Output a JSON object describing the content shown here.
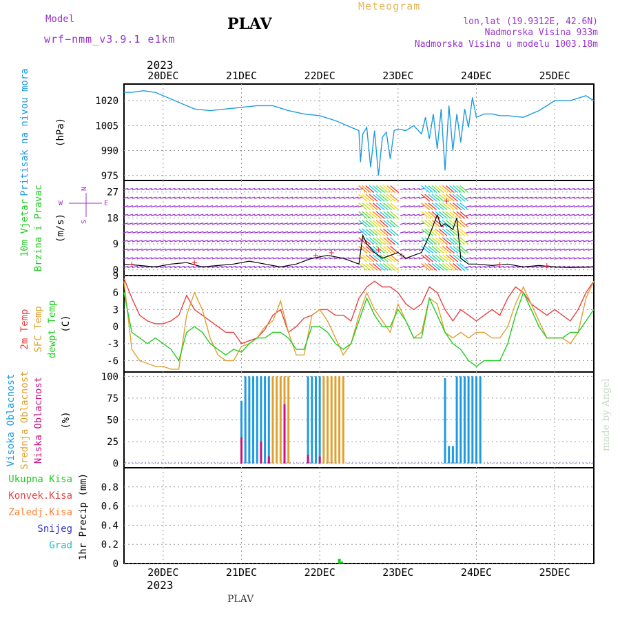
{
  "header": {
    "model_label": "Model",
    "model_name": "wrf−nmm_v3.9.1  e1km",
    "station": "PLAV",
    "product": "Meteogram",
    "lonlat": "lon,lat (19.9312E, 42.6N)",
    "elevation": "Nadmorska Visina 933m",
    "model_elevation": "Nadmorska Visina u modelu 1003.18m",
    "year_top": "2023",
    "year_bottom": "2023",
    "footer_station": "PLAV",
    "credit": "made by Angel"
  },
  "colors": {
    "pressure": "#1e9be0",
    "temp2m": "#e84040",
    "sfc": "#e0a030",
    "dewpt": "#20cc20",
    "high": "#1e9be0",
    "mid": "#e0a030",
    "low": "#cc1080",
    "purple": "#9933cc",
    "gold": "#e6b85c"
  },
  "chart_data": [
    {
      "type": "line",
      "panel": "pressure",
      "title_lines": [
        "Pritisak na nivou mora"
      ],
      "unit": "(hPa)",
      "x_ticks": [
        "20DEC",
        "21DEC",
        "22DEC",
        "23DEC",
        "24DEC",
        "25DEC"
      ],
      "ylim": [
        972,
        1030
      ],
      "yticks": [
        975,
        990,
        1005,
        1020
      ],
      "series": [
        {
          "x": [
            19.5,
            19.6,
            19.75,
            19.9,
            20.0,
            20.2,
            20.4,
            20.6,
            20.8,
            21.0,
            21.2,
            21.4,
            21.6,
            21.8,
            22.0,
            22.2,
            22.4,
            22.45,
            22.5,
            22.52,
            22.55,
            22.6,
            22.65,
            22.7,
            22.75,
            22.8,
            22.85,
            22.9,
            22.95,
            23.0,
            23.1,
            23.2,
            23.3,
            23.35,
            23.4,
            23.45,
            23.5,
            23.55,
            23.6,
            23.65,
            23.7,
            23.75,
            23.8,
            23.85,
            23.9,
            23.95,
            24.0,
            24.1,
            24.2,
            24.3,
            24.4,
            24.6,
            24.8,
            25.0,
            25.2,
            25.4,
            25.5
          ],
          "y": [
            1025,
            1025,
            1026,
            1025,
            1023,
            1019,
            1015,
            1014,
            1015,
            1016,
            1017,
            1017,
            1014,
            1012,
            1011,
            1008,
            1004,
            1003,
            1002,
            983,
            1000,
            1004,
            980,
            1002,
            975,
            998,
            1001,
            985,
            1002,
            1003,
            1002,
            1005,
            1000,
            1010,
            997,
            1012,
            991,
            1015,
            978,
            1017,
            990,
            1012,
            995,
            1015,
            1004,
            1022,
            1010,
            1012,
            1012,
            1011,
            1011,
            1010,
            1014,
            1020,
            1020,
            1023,
            1020
          ]
        }
      ]
    },
    {
      "type": "line",
      "panel": "wind",
      "title_lines": [
        "10m Vjetar",
        "Brzina i Pravac"
      ],
      "unit": "(m/s)",
      "compass": [
        "N",
        "W",
        "E",
        "S"
      ],
      "ylim": [
        -2,
        31
      ],
      "yticks": [
        0,
        9,
        18,
        27
      ],
      "series": [
        {
          "name": "speed",
          "x": [
            19.5,
            19.7,
            19.9,
            20.1,
            20.3,
            20.5,
            20.7,
            20.9,
            21.1,
            21.3,
            21.5,
            21.7,
            21.9,
            22.1,
            22.3,
            22.5,
            22.55,
            22.6,
            22.7,
            22.8,
            22.9,
            23.0,
            23.1,
            23.2,
            23.3,
            23.4,
            23.5,
            23.55,
            23.6,
            23.7,
            23.75,
            23.8,
            23.9,
            24.0,
            24.2,
            24.4,
            24.6,
            24.8,
            25.0,
            25.2,
            25.5
          ],
          "y": [
            2,
            1.5,
            1,
            2,
            2.5,
            1,
            1.5,
            2,
            3,
            2,
            1,
            2,
            4,
            5,
            4,
            2,
            12,
            9,
            6,
            4,
            5,
            6,
            4,
            5,
            6,
            12,
            19,
            15,
            16,
            14,
            18,
            4,
            2,
            2,
            1.5,
            2,
            1,
            1.5,
            1,
            0.8,
            1
          ]
        }
      ],
      "gust_symbol": "+"
    },
    {
      "type": "line",
      "panel": "temperature",
      "title_lines": [
        "2m Temp",
        "SFC Temp",
        "dewpt Temp"
      ],
      "unit": "(C)",
      "ylim": [
        -8,
        9
      ],
      "yticks": [
        -6,
        -3,
        0,
        3,
        6,
        9
      ],
      "x": [
        19.5,
        19.6,
        19.7,
        19.8,
        19.9,
        20.0,
        20.1,
        20.2,
        20.3,
        20.4,
        20.5,
        20.6,
        20.7,
        20.8,
        20.9,
        21.0,
        21.1,
        21.2,
        21.3,
        21.4,
        21.5,
        21.6,
        21.7,
        21.8,
        21.9,
        22.0,
        22.1,
        22.2,
        22.3,
        22.4,
        22.5,
        22.6,
        22.7,
        22.8,
        22.9,
        23.0,
        23.1,
        23.2,
        23.3,
        23.4,
        23.5,
        23.6,
        23.7,
        23.8,
        23.9,
        24.0,
        24.1,
        24.2,
        24.3,
        24.4,
        24.5,
        24.6,
        24.7,
        24.8,
        24.9,
        25.0,
        25.1,
        25.2,
        25.3,
        25.4,
        25.5
      ],
      "series": [
        {
          "name": "2m Temp",
          "color_key": "temp2m",
          "y": [
            8.5,
            5,
            2,
            1,
            0.5,
            0.5,
            1,
            2,
            5.5,
            3,
            2,
            1,
            0,
            -1,
            -1,
            -3,
            -2.5,
            -2,
            -0.5,
            2,
            3,
            -1,
            0,
            1.5,
            2,
            3,
            3,
            2,
            2,
            1,
            5,
            7,
            8,
            7,
            7,
            6,
            4,
            3,
            4,
            7,
            6,
            3,
            1,
            3,
            2,
            1,
            2,
            3,
            2,
            5,
            7,
            6,
            4,
            3,
            2,
            3,
            2,
            1,
            3,
            6,
            8
          ]
        },
        {
          "name": "SFC Temp",
          "color_key": "sfc",
          "y": [
            8,
            -4,
            -6,
            -6.5,
            -7,
            -7,
            -7.5,
            -7.5,
            2,
            6,
            3,
            -2,
            -5,
            -6,
            -6,
            -3.5,
            -3,
            -2,
            0,
            1,
            4.5,
            -1,
            -5,
            -5,
            2,
            3,
            1,
            -2,
            -5,
            -3,
            2,
            6,
            3,
            1,
            -1,
            4,
            1,
            -2,
            -1,
            5,
            4,
            -1,
            -2,
            -1,
            -2,
            -1,
            -1,
            -2,
            -2,
            0,
            4,
            7,
            4,
            1,
            -2,
            -2,
            -2,
            -3,
            -1,
            5,
            8
          ]
        },
        {
          "name": "dewpt Temp",
          "color_key": "dewpt",
          "y": [
            6,
            -1,
            -2,
            -3,
            -2,
            -3,
            -4,
            -6,
            -1,
            0,
            -1,
            -3,
            -4,
            -5,
            -4,
            -4.5,
            -3,
            -2,
            -2,
            -1,
            -1,
            -2,
            -4,
            -4,
            0,
            0,
            -1,
            -3,
            -4,
            -3,
            1,
            5,
            2,
            0,
            0,
            3,
            1,
            -2,
            -2,
            5,
            2,
            -1,
            -3,
            -4,
            -6,
            -7,
            -6,
            -6,
            -6,
            -3,
            2,
            6,
            3,
            0,
            -2,
            -2,
            -2,
            -1,
            -1,
            1,
            3
          ]
        }
      ]
    },
    {
      "type": "bar",
      "panel": "clouds",
      "title_lines": [
        "Visoka Oblacnost",
        "Srednja Oblacnost",
        "Niska Oblacnost"
      ],
      "unit": "(%)",
      "ylim": [
        -5,
        105
      ],
      "yticks": [
        0,
        25,
        50,
        75,
        100
      ],
      "series": [
        {
          "name": "Visoka Oblacnost",
          "color_key": "high",
          "x": [
            21.0,
            21.05,
            21.1,
            21.15,
            21.2,
            21.25,
            21.3,
            21.35,
            21.85,
            21.9,
            21.95,
            22.0,
            23.6,
            23.65,
            23.7,
            23.75,
            23.8,
            23.85,
            23.9,
            23.95,
            24.0,
            24.05
          ],
          "y": [
            72,
            100,
            100,
            100,
            100,
            100,
            100,
            100,
            100,
            100,
            100,
            100,
            98,
            20,
            20,
            100,
            100,
            100,
            100,
            100,
            100,
            100
          ]
        },
        {
          "name": "Srednja Oblacnost",
          "color_key": "mid",
          "x": [
            21.4,
            21.45,
            21.5,
            21.55,
            21.6,
            22.05,
            22.1,
            22.15,
            22.2,
            22.25,
            22.3
          ],
          "y": [
            100,
            100,
            100,
            100,
            100,
            100,
            100,
            100,
            100,
            100,
            100
          ]
        },
        {
          "name": "Niska Oblacnost",
          "color_key": "low",
          "x": [
            21.0,
            21.25,
            21.35,
            21.55,
            21.85,
            22.0
          ],
          "y": [
            30,
            25,
            8,
            68,
            10,
            8
          ]
        }
      ]
    },
    {
      "type": "bar",
      "panel": "precip",
      "title_lines": [
        "1hr Precip (mm)"
      ],
      "legend": [
        "Ukupna Kisa",
        "Konvek.Kisa",
        "Zaledj.Kisa",
        "Snijeg",
        "Grad"
      ],
      "ylim": [
        0,
        1.0
      ],
      "yticks": [
        0,
        0.2,
        0.4,
        0.6,
        0.8
      ],
      "series": [
        {
          "name": "Ukupna Kisa",
          "color_key": "dewpt",
          "x": [
            22.25,
            22.28
          ],
          "y": [
            0.05,
            0.02
          ]
        }
      ]
    }
  ]
}
